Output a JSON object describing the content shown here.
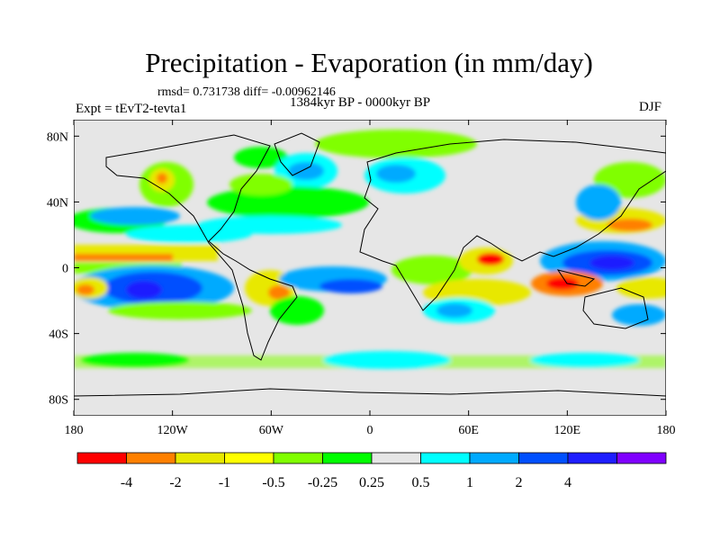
{
  "title": "Precipitation - Evaporation (in mm/day)",
  "stats": "rmsd= 0.731738 diff= -0.00962146",
  "experiment": "Expt = tEvT2-tevta1",
  "period": "1384kyr BP - 0000kyr BP",
  "season": "DJF",
  "map": {
    "projection": "cylindrical-equidistant",
    "lon_range": [
      -180,
      180
    ],
    "lat_range": [
      -90,
      90
    ],
    "y_ticks": [
      {
        "lat": 80,
        "label": "80N"
      },
      {
        "lat": 40,
        "label": "40N"
      },
      {
        "lat": 0,
        "label": "0"
      },
      {
        "lat": -40,
        "label": "40S"
      },
      {
        "lat": -80,
        "label": "80S"
      }
    ],
    "x_ticks": [
      {
        "lon": -180,
        "label": "180"
      },
      {
        "lon": -120,
        "label": "120W"
      },
      {
        "lon": -60,
        "label": "60W"
      },
      {
        "lon": 0,
        "label": "0"
      },
      {
        "lon": 60,
        "label": "60E"
      },
      {
        "lon": 120,
        "label": "120E"
      },
      {
        "lon": 180,
        "label": "180"
      }
    ]
  },
  "colorbar": {
    "colors": [
      "#ff0000",
      "#ff8000",
      "#e8e800",
      "#ffff00",
      "#80ff00",
      "#00ff00",
      "#e6e6e6",
      "#00ffff",
      "#00aaff",
      "#0050ff",
      "#1e1eff",
      "#8000ff"
    ],
    "labels": [
      "-4",
      "-2",
      "-1",
      "-0.5",
      "-0.25",
      "0.25",
      "0.5",
      "1",
      "2",
      "4"
    ]
  }
}
